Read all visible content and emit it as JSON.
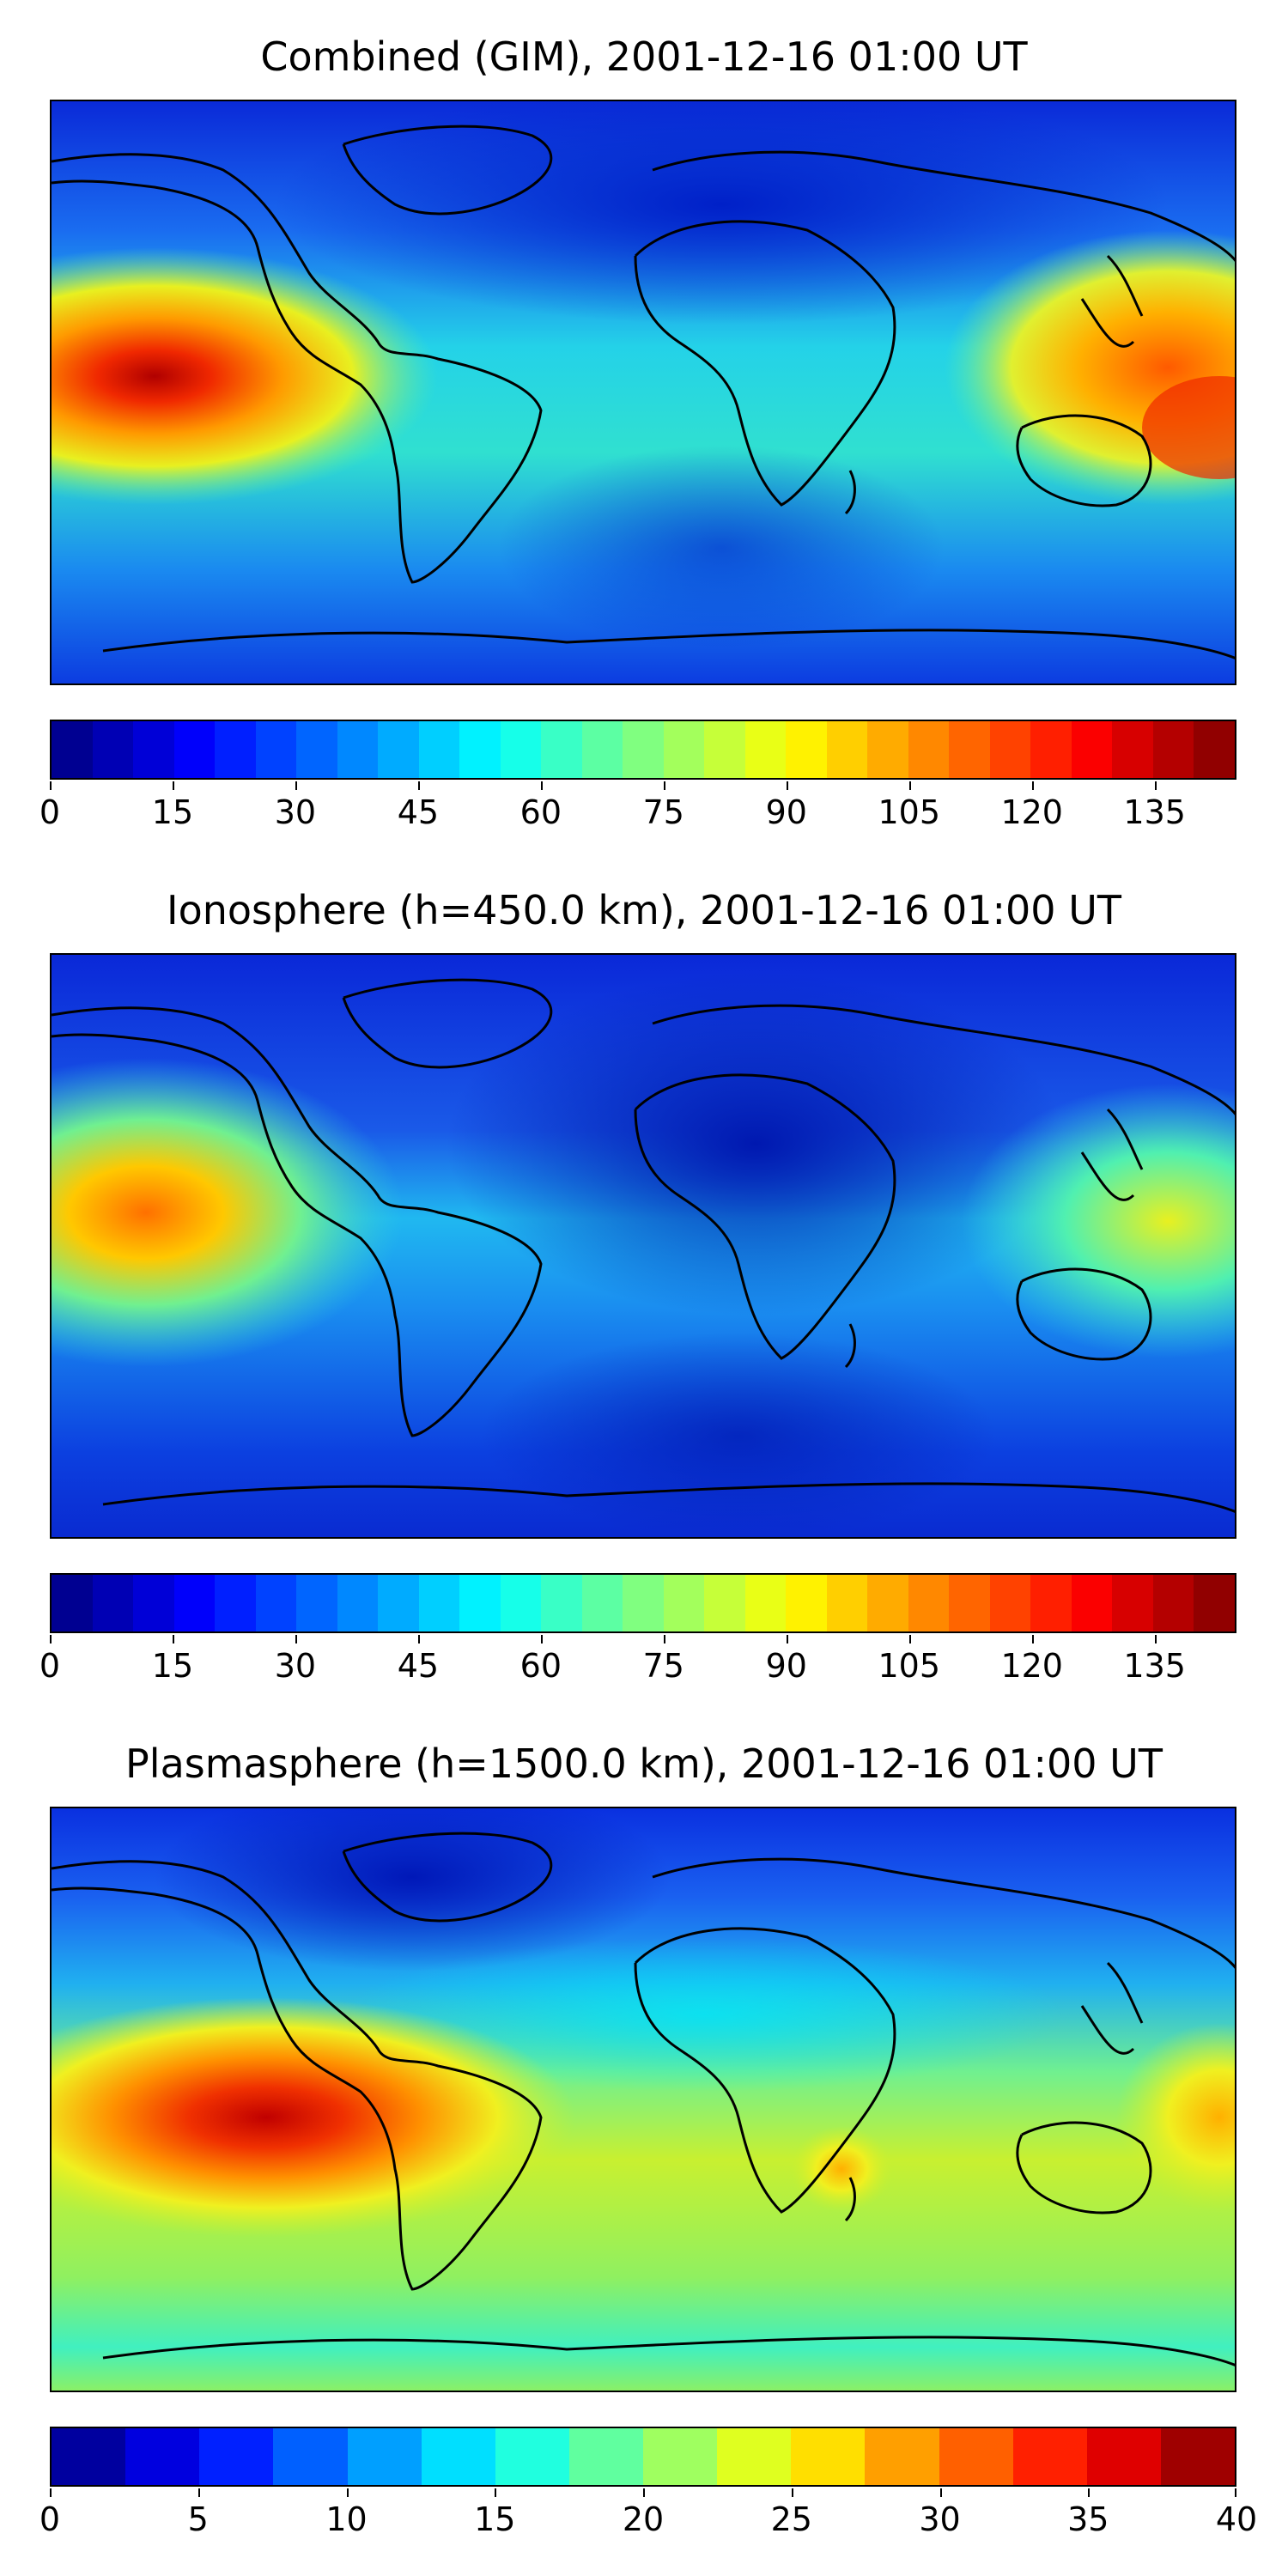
{
  "panels": [
    {
      "title": "Combined (GIM), 2001-12-16 01:00 UT",
      "colorbar": {
        "min": 0,
        "max": 145,
        "levels": 29,
        "tick_labels": [
          "0",
          "15",
          "30",
          "45",
          "60",
          "75",
          "90",
          "105",
          "120",
          "135"
        ],
        "tick_values": [
          0,
          15,
          30,
          45,
          60,
          75,
          90,
          105,
          120,
          135
        ]
      },
      "colormap": "jet"
    },
    {
      "title": "Ionosphere  (h=450.0 km), 2001-12-16 01:00 UT",
      "colorbar": {
        "min": 0,
        "max": 145,
        "levels": 29,
        "tick_labels": [
          "0",
          "15",
          "30",
          "45",
          "60",
          "75",
          "90",
          "105",
          "120",
          "135"
        ],
        "tick_values": [
          0,
          15,
          30,
          45,
          60,
          75,
          90,
          105,
          120,
          135
        ]
      },
      "colormap": "jet"
    },
    {
      "title": "Plasmasphere (h=1500.0 km), 2001-12-16 01:00 UT",
      "colorbar": {
        "min": 0,
        "max": 40,
        "levels": 16,
        "tick_labels": [
          "0",
          "5",
          "10",
          "15",
          "20",
          "25",
          "30",
          "35",
          "40"
        ],
        "tick_values": [
          0,
          5,
          10,
          15,
          20,
          25,
          30,
          35,
          40
        ]
      },
      "colormap": "jet"
    }
  ]
}
